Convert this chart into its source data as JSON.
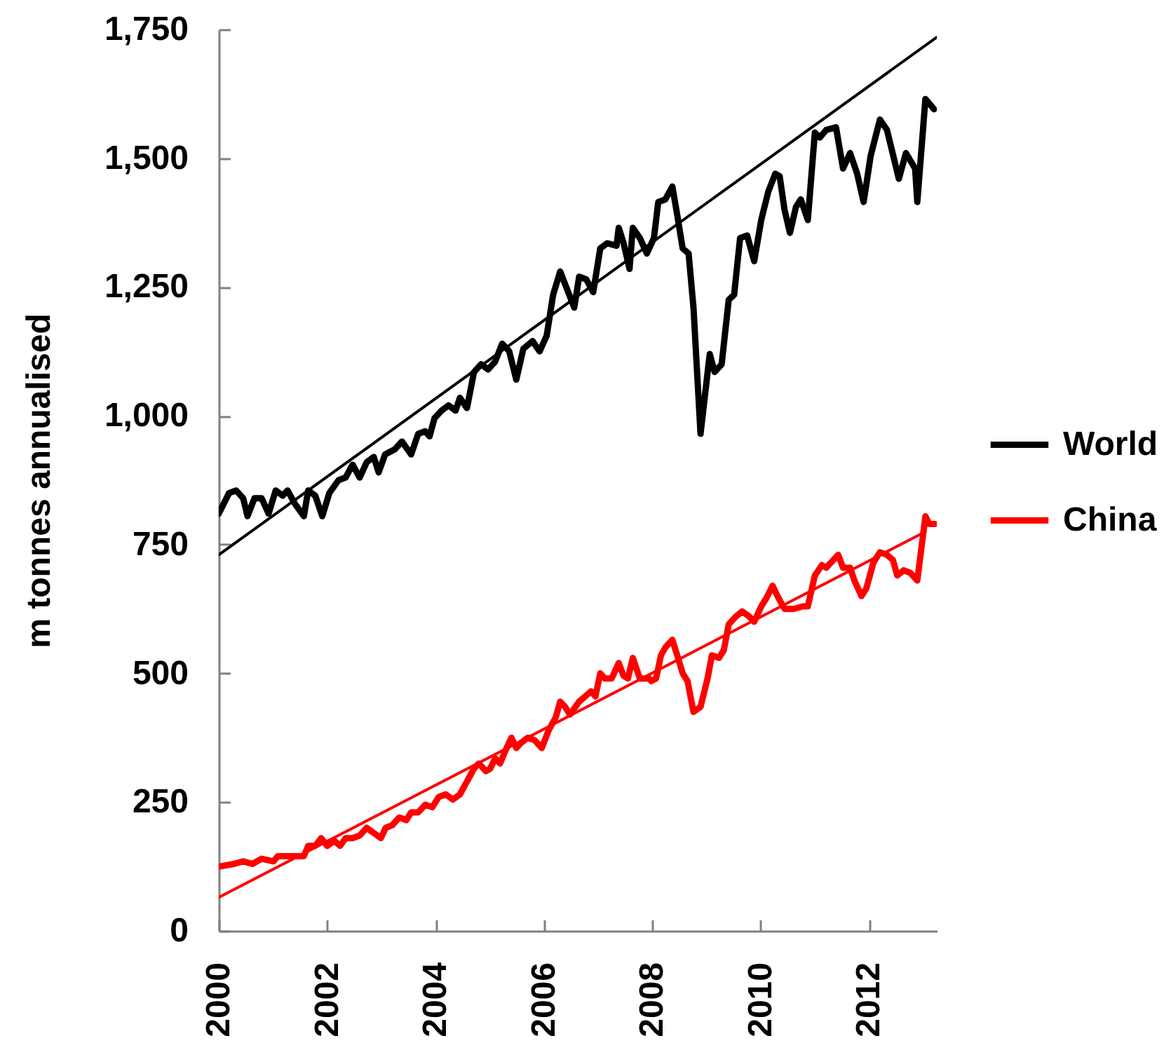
{
  "chart_data": {
    "type": "line",
    "ylabel": "m tonnes annualised",
    "xlim": [
      2000,
      2013.25
    ],
    "xticks": [
      2000,
      2002,
      2004,
      2006,
      2008,
      2010,
      2012
    ],
    "ylim": [
      0,
      1750
    ],
    "yticks": [
      0,
      250,
      500,
      750,
      {
        "value": 1000,
        "label": "1,000"
      },
      {
        "value": 1250,
        "label": "1,250"
      },
      {
        "value": 1500,
        "label": "1,500"
      },
      {
        "value": 1750,
        "label": "1,750"
      }
    ],
    "grid": false,
    "legend": "right",
    "series": [
      {
        "name": "World",
        "color": "#000000",
        "x": [
          2000.0,
          2000.19,
          2000.32,
          2000.45,
          2000.53,
          2000.66,
          2000.79,
          2000.92,
          2001.05,
          2001.18,
          2001.27,
          2001.4,
          2001.57,
          2001.65,
          2001.78,
          2001.91,
          2002.04,
          2002.21,
          2002.34,
          2002.47,
          2002.6,
          2002.73,
          2002.86,
          2002.95,
          2003.07,
          2003.25,
          2003.38,
          2003.55,
          2003.68,
          2003.81,
          2003.89,
          2003.98,
          2004.11,
          2004.24,
          2004.37,
          2004.45,
          2004.58,
          2004.71,
          2004.84,
          2004.97,
          2005.1,
          2005.23,
          2005.36,
          2005.49,
          2005.62,
          2005.79,
          2005.92,
          2006.05,
          2006.17,
          2006.3,
          2006.43,
          2006.56,
          2006.65,
          2006.78,
          2006.91,
          2007.04,
          2007.17,
          2007.34,
          2007.38,
          2007.47,
          2007.58,
          2007.64,
          2007.77,
          2007.9,
          2008.03,
          2008.11,
          2008.24,
          2008.37,
          2008.46,
          2008.56,
          2008.67,
          2008.76,
          2008.89,
          2009.06,
          2009.15,
          2009.28,
          2009.41,
          2009.51,
          2009.62,
          2009.75,
          2009.88,
          2010.01,
          2010.14,
          2010.27,
          2010.35,
          2010.44,
          2010.54,
          2010.65,
          2010.74,
          2010.87,
          2011.0,
          2011.09,
          2011.21,
          2011.39,
          2011.52,
          2011.65,
          2011.78,
          2011.9,
          2012.03,
          2012.2,
          2012.33,
          2012.55,
          2012.68,
          2012.85,
          2012.89,
          2013.04,
          2013.2
        ],
        "values": [
          810,
          850,
          855,
          840,
          805,
          840,
          840,
          810,
          855,
          845,
          855,
          830,
          805,
          855,
          845,
          805,
          850,
          875,
          880,
          905,
          880,
          910,
          920,
          890,
          925,
          935,
          950,
          925,
          965,
          970,
          960,
          995,
          1010,
          1020,
          1010,
          1035,
          1015,
          1085,
          1100,
          1090,
          1105,
          1140,
          1125,
          1070,
          1130,
          1145,
          1125,
          1155,
          1235,
          1280,
          1245,
          1210,
          1270,
          1265,
          1240,
          1325,
          1335,
          1330,
          1365,
          1335,
          1285,
          1365,
          1345,
          1315,
          1345,
          1415,
          1420,
          1445,
          1390,
          1325,
          1315,
          1210,
          965,
          1120,
          1085,
          1100,
          1225,
          1235,
          1345,
          1350,
          1300,
          1380,
          1435,
          1470,
          1465,
          1400,
          1355,
          1405,
          1420,
          1380,
          1550,
          1540,
          1555,
          1560,
          1480,
          1510,
          1470,
          1415,
          1505,
          1575,
          1555,
          1460,
          1510,
          1480,
          1415,
          1615,
          1595
        ]
      },
      {
        "name": "China",
        "color": "#ff0000",
        "x": [
          2000.02,
          2000.28,
          2000.45,
          2000.62,
          2000.79,
          2001.01,
          2001.09,
          2001.4,
          2001.57,
          2001.65,
          2001.78,
          2001.89,
          2002.0,
          2002.13,
          2002.24,
          2002.34,
          2002.47,
          2002.6,
          2002.73,
          2002.86,
          2002.99,
          2003.08,
          2003.2,
          2003.33,
          2003.46,
          2003.55,
          2003.68,
          2003.81,
          2003.94,
          2004.06,
          2004.19,
          2004.32,
          2004.45,
          2004.58,
          2004.71,
          2004.8,
          2004.93,
          2005.01,
          2005.1,
          2005.19,
          2005.27,
          2005.4,
          2005.49,
          2005.58,
          2005.7,
          2005.83,
          2005.96,
          2006.09,
          2006.22,
          2006.3,
          2006.39,
          2006.48,
          2006.65,
          2006.87,
          2006.95,
          2007.04,
          2007.12,
          2007.25,
          2007.38,
          2007.47,
          2007.55,
          2007.64,
          2007.77,
          2007.94,
          2007.98,
          2008.07,
          2008.16,
          2008.24,
          2008.37,
          2008.46,
          2008.56,
          2008.65,
          2008.76,
          2008.89,
          2009.02,
          2009.1,
          2009.23,
          2009.32,
          2009.41,
          2009.54,
          2009.66,
          2009.79,
          2009.88,
          2010.01,
          2010.1,
          2010.22,
          2010.31,
          2010.44,
          2010.61,
          2010.78,
          2010.87,
          2011.0,
          2011.13,
          2011.21,
          2011.43,
          2011.52,
          2011.65,
          2011.73,
          2011.86,
          2011.95,
          2012.08,
          2012.2,
          2012.33,
          2012.44,
          2012.52,
          2012.64,
          2012.76,
          2012.89,
          2013.04,
          2013.11,
          2013.22
        ],
        "values": [
          125,
          130,
          135,
          130,
          140,
          135,
          145,
          145,
          145,
          165,
          165,
          180,
          165,
          175,
          165,
          180,
          180,
          185,
          200,
          190,
          180,
          200,
          205,
          220,
          215,
          230,
          230,
          245,
          240,
          260,
          265,
          255,
          265,
          290,
          315,
          325,
          310,
          315,
          335,
          325,
          345,
          375,
          355,
          365,
          375,
          370,
          355,
          390,
          415,
          445,
          435,
          420,
          445,
          465,
          455,
          500,
          490,
          490,
          520,
          495,
          490,
          530,
          490,
          490,
          485,
          490,
          535,
          550,
          565,
          535,
          500,
          485,
          425,
          435,
          490,
          535,
          530,
          545,
          595,
          610,
          620,
          610,
          600,
          630,
          645,
          670,
          650,
          625,
          625,
          630,
          630,
          690,
          710,
          705,
          730,
          705,
          705,
          680,
          650,
          665,
          715,
          735,
          730,
          720,
          690,
          700,
          695,
          680,
          805,
          790,
          790
        ]
      },
      {
        "type": "line",
        "color": "#000000",
        "x": [
          2000,
          2013.25
        ],
        "values": [
          730,
          1735
        ]
      },
      {
        "type": "line",
        "color": "#ff0000",
        "x": [
          2000,
          2013.04
        ],
        "values": [
          65,
          775
        ]
      }
    ]
  }
}
